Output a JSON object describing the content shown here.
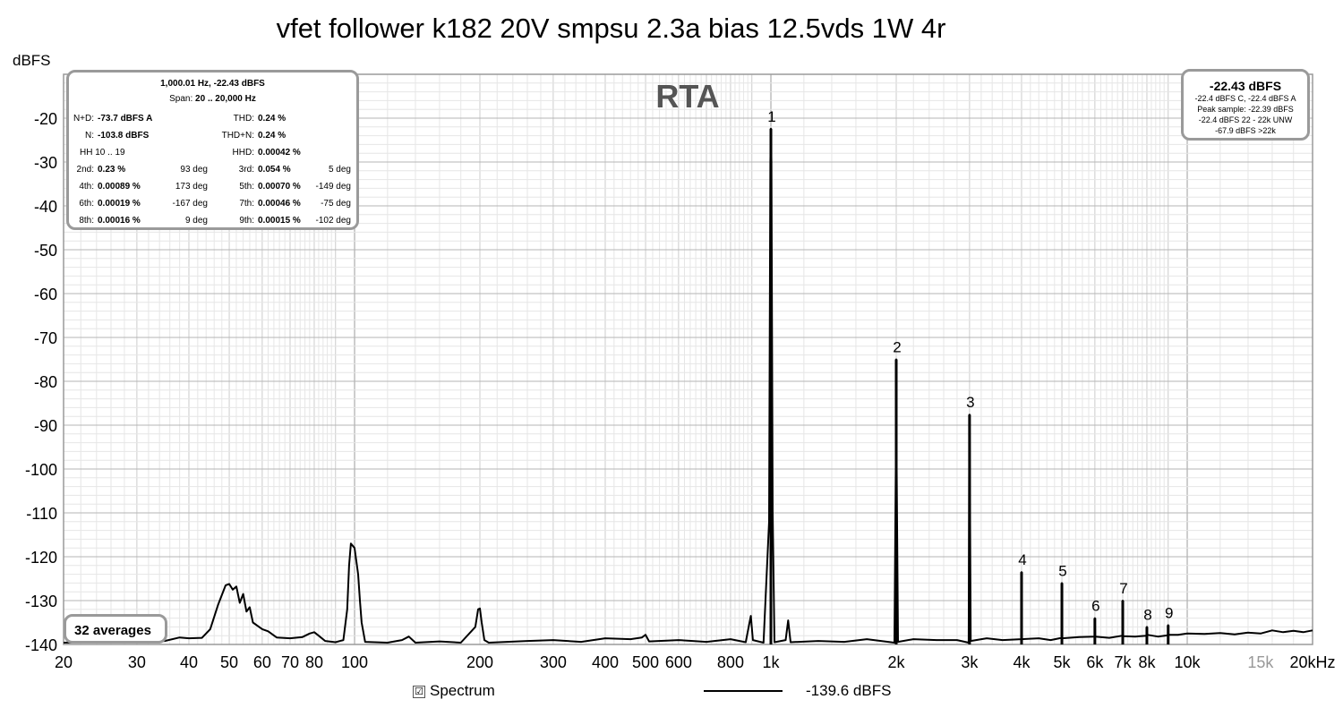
{
  "title": "vfet follower k182 20V smpsu 2.3a bias 12.5vds 1W 4r",
  "ylabel": "dBFS",
  "stats_panel": {
    "header": "1,000.01 Hz, -22.43 dBFS",
    "span_label": "Span:",
    "span_value": "20 .. 20,000 Hz",
    "rows": [
      [
        {
          "l": "N+D:",
          "v": "-73.7 dBFS A"
        },
        null,
        {
          "l": "THD:",
          "v": "0.24 %"
        },
        null
      ],
      [
        {
          "l": "N:",
          "v": "-103.8 dBFS"
        },
        null,
        {
          "l": "THD+N:",
          "v": "0.24 %"
        },
        null
      ],
      [
        {
          "l": "",
          "v": "HH 10 .. 19"
        },
        null,
        {
          "l": "HHD:",
          "v": "0.00042 %"
        },
        null
      ],
      [
        {
          "l": "2nd:",
          "v": "0.23 %"
        },
        "93 deg",
        {
          "l": "3rd:",
          "v": "0.054 %"
        },
        "5 deg"
      ],
      [
        {
          "l": "4th:",
          "v": "0.00089 %"
        },
        "173 deg",
        {
          "l": "5th:",
          "v": "0.00070 %"
        },
        "-149 deg"
      ],
      [
        {
          "l": "6th:",
          "v": "0.00019 %"
        },
        "-167 deg",
        {
          "l": "7th:",
          "v": "0.00046 %"
        },
        "-75 deg"
      ],
      [
        {
          "l": "8th:",
          "v": "0.00016 %"
        },
        "9 deg",
        {
          "l": "9th:",
          "v": "0.00015 %"
        },
        "-102 deg"
      ]
    ]
  },
  "peak_panel": {
    "value": "-22.43 dBFS",
    "lines": [
      "-22.4 dBFS C, -22.4 dBFS A",
      "Peak sample: -22.39 dBFS",
      "-22.4 dBFS 22 - 22k UNW",
      "-67.9 dBFS >22k"
    ]
  },
  "averages_label": "32 averages",
  "legend": {
    "checkbox": "☑",
    "series_name": "Spectrum",
    "value": "-139.6 dBFS"
  },
  "colors": {
    "grid": "#cccccc",
    "trace": "#000000",
    "frame": "#9a9a9a",
    "watermark": "#555555",
    "light_tick": "#999999"
  },
  "chart_data": {
    "type": "line",
    "watermark": "RTA",
    "xscale": "log",
    "xlim": [
      20,
      20000
    ],
    "ylim": [
      -140,
      -10
    ],
    "yticks": [
      -20,
      -30,
      -40,
      -50,
      -60,
      -70,
      -80,
      -90,
      -100,
      -110,
      -120,
      -130,
      -140
    ],
    "xticks": [
      {
        "v": 20,
        "t": "20"
      },
      {
        "v": 30,
        "t": "30"
      },
      {
        "v": 40,
        "t": "40"
      },
      {
        "v": 50,
        "t": "50"
      },
      {
        "v": 60,
        "t": "60"
      },
      {
        "v": 70,
        "t": "70"
      },
      {
        "v": 80,
        "t": "80"
      },
      {
        "v": 100,
        "t": "100"
      },
      {
        "v": 200,
        "t": "200"
      },
      {
        "v": 300,
        "t": "300"
      },
      {
        "v": 400,
        "t": "400"
      },
      {
        "v": 500,
        "t": "500"
      },
      {
        "v": 600,
        "t": "600"
      },
      {
        "v": 800,
        "t": "800"
      },
      {
        "v": 1000,
        "t": "1k"
      },
      {
        "v": 2000,
        "t": "2k"
      },
      {
        "v": 3000,
        "t": "3k"
      },
      {
        "v": 4000,
        "t": "4k"
      },
      {
        "v": 5000,
        "t": "5k"
      },
      {
        "v": 6000,
        "t": "6k"
      },
      {
        "v": 7000,
        "t": "7k"
      },
      {
        "v": 8000,
        "t": "8k"
      },
      {
        "v": 10000,
        "t": "10k"
      },
      {
        "v": 15000,
        "t": "15k",
        "light": true
      },
      {
        "v": 20000,
        "t": "20kHz"
      }
    ],
    "harmonics": [
      {
        "label": "1",
        "f": 1000,
        "db": -22.4
      },
      {
        "label": "2",
        "f": 2000,
        "db": -75
      },
      {
        "label": "3",
        "f": 3000,
        "db": -87.6
      },
      {
        "label": "4",
        "f": 4000,
        "db": -123.5
      },
      {
        "label": "5",
        "f": 5000,
        "db": -126
      },
      {
        "label": "6",
        "f": 6000,
        "db": -134
      },
      {
        "label": "7",
        "f": 7000,
        "db": -130
      },
      {
        "label": "8",
        "f": 8000,
        "db": -136
      },
      {
        "label": "9",
        "f": 9000,
        "db": -135.6
      }
    ],
    "series": [
      {
        "name": "Spectrum",
        "points": [
          [
            20,
            -139.6
          ],
          [
            25,
            -139.5
          ],
          [
            28,
            -138.8
          ],
          [
            30,
            -139.5
          ],
          [
            35,
            -139.2
          ],
          [
            38,
            -138.4
          ],
          [
            40,
            -138.6
          ],
          [
            43,
            -138.5
          ],
          [
            45,
            -136.5
          ],
          [
            47,
            -131
          ],
          [
            49,
            -126.5
          ],
          [
            50,
            -126.2
          ],
          [
            51,
            -127.5
          ],
          [
            52,
            -126.8
          ],
          [
            53,
            -130.5
          ],
          [
            54,
            -128.5
          ],
          [
            55,
            -132.5
          ],
          [
            56,
            -131.5
          ],
          [
            57,
            -135
          ],
          [
            60,
            -136.5
          ],
          [
            62,
            -137
          ],
          [
            65,
            -138.4
          ],
          [
            70,
            -138.6
          ],
          [
            75,
            -138.3
          ],
          [
            78,
            -137.5
          ],
          [
            80,
            -137.2
          ],
          [
            82,
            -138
          ],
          [
            85,
            -139.2
          ],
          [
            90,
            -139.5
          ],
          [
            94,
            -139
          ],
          [
            96,
            -132
          ],
          [
            97,
            -122
          ],
          [
            98,
            -117
          ],
          [
            99,
            -117.5
          ],
          [
            100,
            -118
          ],
          [
            101,
            -121
          ],
          [
            102,
            -124
          ],
          [
            103,
            -130
          ],
          [
            104,
            -135
          ],
          [
            106,
            -139.4
          ],
          [
            120,
            -139.6
          ],
          [
            130,
            -139
          ],
          [
            135,
            -138.2
          ],
          [
            140,
            -139.6
          ],
          [
            160,
            -139.3
          ],
          [
            180,
            -139.6
          ],
          [
            195,
            -136
          ],
          [
            198,
            -132
          ],
          [
            200,
            -131.8
          ],
          [
            202,
            -135
          ],
          [
            205,
            -139
          ],
          [
            210,
            -139.6
          ],
          [
            260,
            -139.2
          ],
          [
            300,
            -139
          ],
          [
            350,
            -139.4
          ],
          [
            400,
            -138.6
          ],
          [
            460,
            -138.8
          ],
          [
            490,
            -138.4
          ],
          [
            500,
            -137.8
          ],
          [
            510,
            -139.3
          ],
          [
            600,
            -139
          ],
          [
            700,
            -139.4
          ],
          [
            800,
            -138.8
          ],
          [
            870,
            -139.5
          ],
          [
            895,
            -133.5
          ],
          [
            905,
            -139
          ],
          [
            960,
            -139.6
          ],
          [
            990,
            -112
          ],
          [
            997,
            -30
          ],
          [
            1000,
            -22.4
          ],
          [
            1003,
            -30
          ],
          [
            1010,
            -110
          ],
          [
            1020,
            -139.5
          ],
          [
            1085,
            -139
          ],
          [
            1100,
            -134.5
          ],
          [
            1115,
            -139.5
          ],
          [
            1300,
            -139.2
          ],
          [
            1500,
            -139.4
          ],
          [
            1700,
            -138.8
          ],
          [
            1980,
            -139.6
          ],
          [
            1995,
            -100
          ],
          [
            2000,
            -75
          ],
          [
            2005,
            -100
          ],
          [
            2020,
            -139.4
          ],
          [
            2200,
            -138.8
          ],
          [
            2500,
            -139
          ],
          [
            2800,
            -139
          ],
          [
            2985,
            -139.6
          ],
          [
            2995,
            -100
          ],
          [
            3000,
            -87.6
          ],
          [
            3005,
            -100
          ],
          [
            3020,
            -139.2
          ],
          [
            3300,
            -138.6
          ],
          [
            3600,
            -139
          ],
          [
            3990,
            -138.8
          ],
          [
            4000,
            -123.5
          ],
          [
            4010,
            -138.8
          ],
          [
            4400,
            -138.6
          ],
          [
            4700,
            -139
          ],
          [
            4990,
            -138.5
          ],
          [
            5000,
            -126
          ],
          [
            5010,
            -138.6
          ],
          [
            5500,
            -138.3
          ],
          [
            5990,
            -138.2
          ],
          [
            6000,
            -134
          ],
          [
            6010,
            -138.2
          ],
          [
            6500,
            -138.5
          ],
          [
            6990,
            -138
          ],
          [
            7000,
            -130
          ],
          [
            7010,
            -138.1
          ],
          [
            7500,
            -138.2
          ],
          [
            7990,
            -138
          ],
          [
            8000,
            -136
          ],
          [
            8010,
            -137.8
          ],
          [
            8500,
            -138.2
          ],
          [
            8990,
            -137.9
          ],
          [
            9000,
            -135.6
          ],
          [
            9010,
            -137.8
          ],
          [
            9500,
            -137.8
          ],
          [
            10000,
            -137.5
          ],
          [
            11000,
            -137.6
          ],
          [
            12000,
            -137.4
          ],
          [
            13000,
            -137.7
          ],
          [
            14000,
            -137.3
          ],
          [
            15000,
            -137.5
          ],
          [
            16000,
            -136.8
          ],
          [
            17000,
            -137.2
          ],
          [
            18000,
            -136.9
          ],
          [
            19000,
            -137.2
          ],
          [
            20000,
            -136.8
          ]
        ]
      }
    ]
  }
}
